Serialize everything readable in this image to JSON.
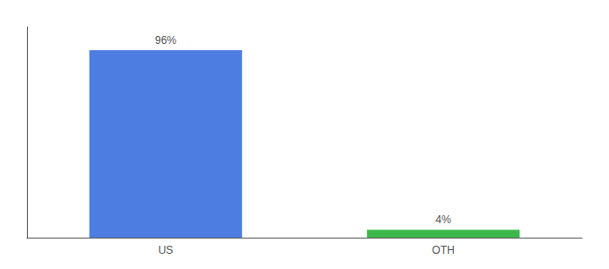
{
  "chart_data": {
    "type": "bar",
    "categories": [
      "US",
      "OTH"
    ],
    "values": [
      96,
      4
    ],
    "value_labels": [
      "96%",
      "4%"
    ],
    "colors": [
      "#4d7de0",
      "#3cb84a"
    ],
    "ylim": [
      0,
      108
    ],
    "yticks": [],
    "tick_labels": "x",
    "grid": false,
    "data_labels": true
  }
}
